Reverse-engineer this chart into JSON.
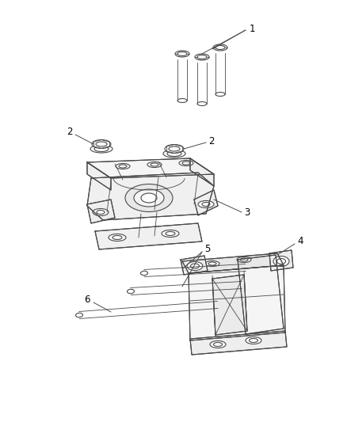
{
  "background_color": "#ffffff",
  "line_color": "#4a4a4a",
  "label_color": "#000000",
  "fig_width": 4.38,
  "fig_height": 5.33,
  "dpi": 100,
  "font_size": 8.5
}
